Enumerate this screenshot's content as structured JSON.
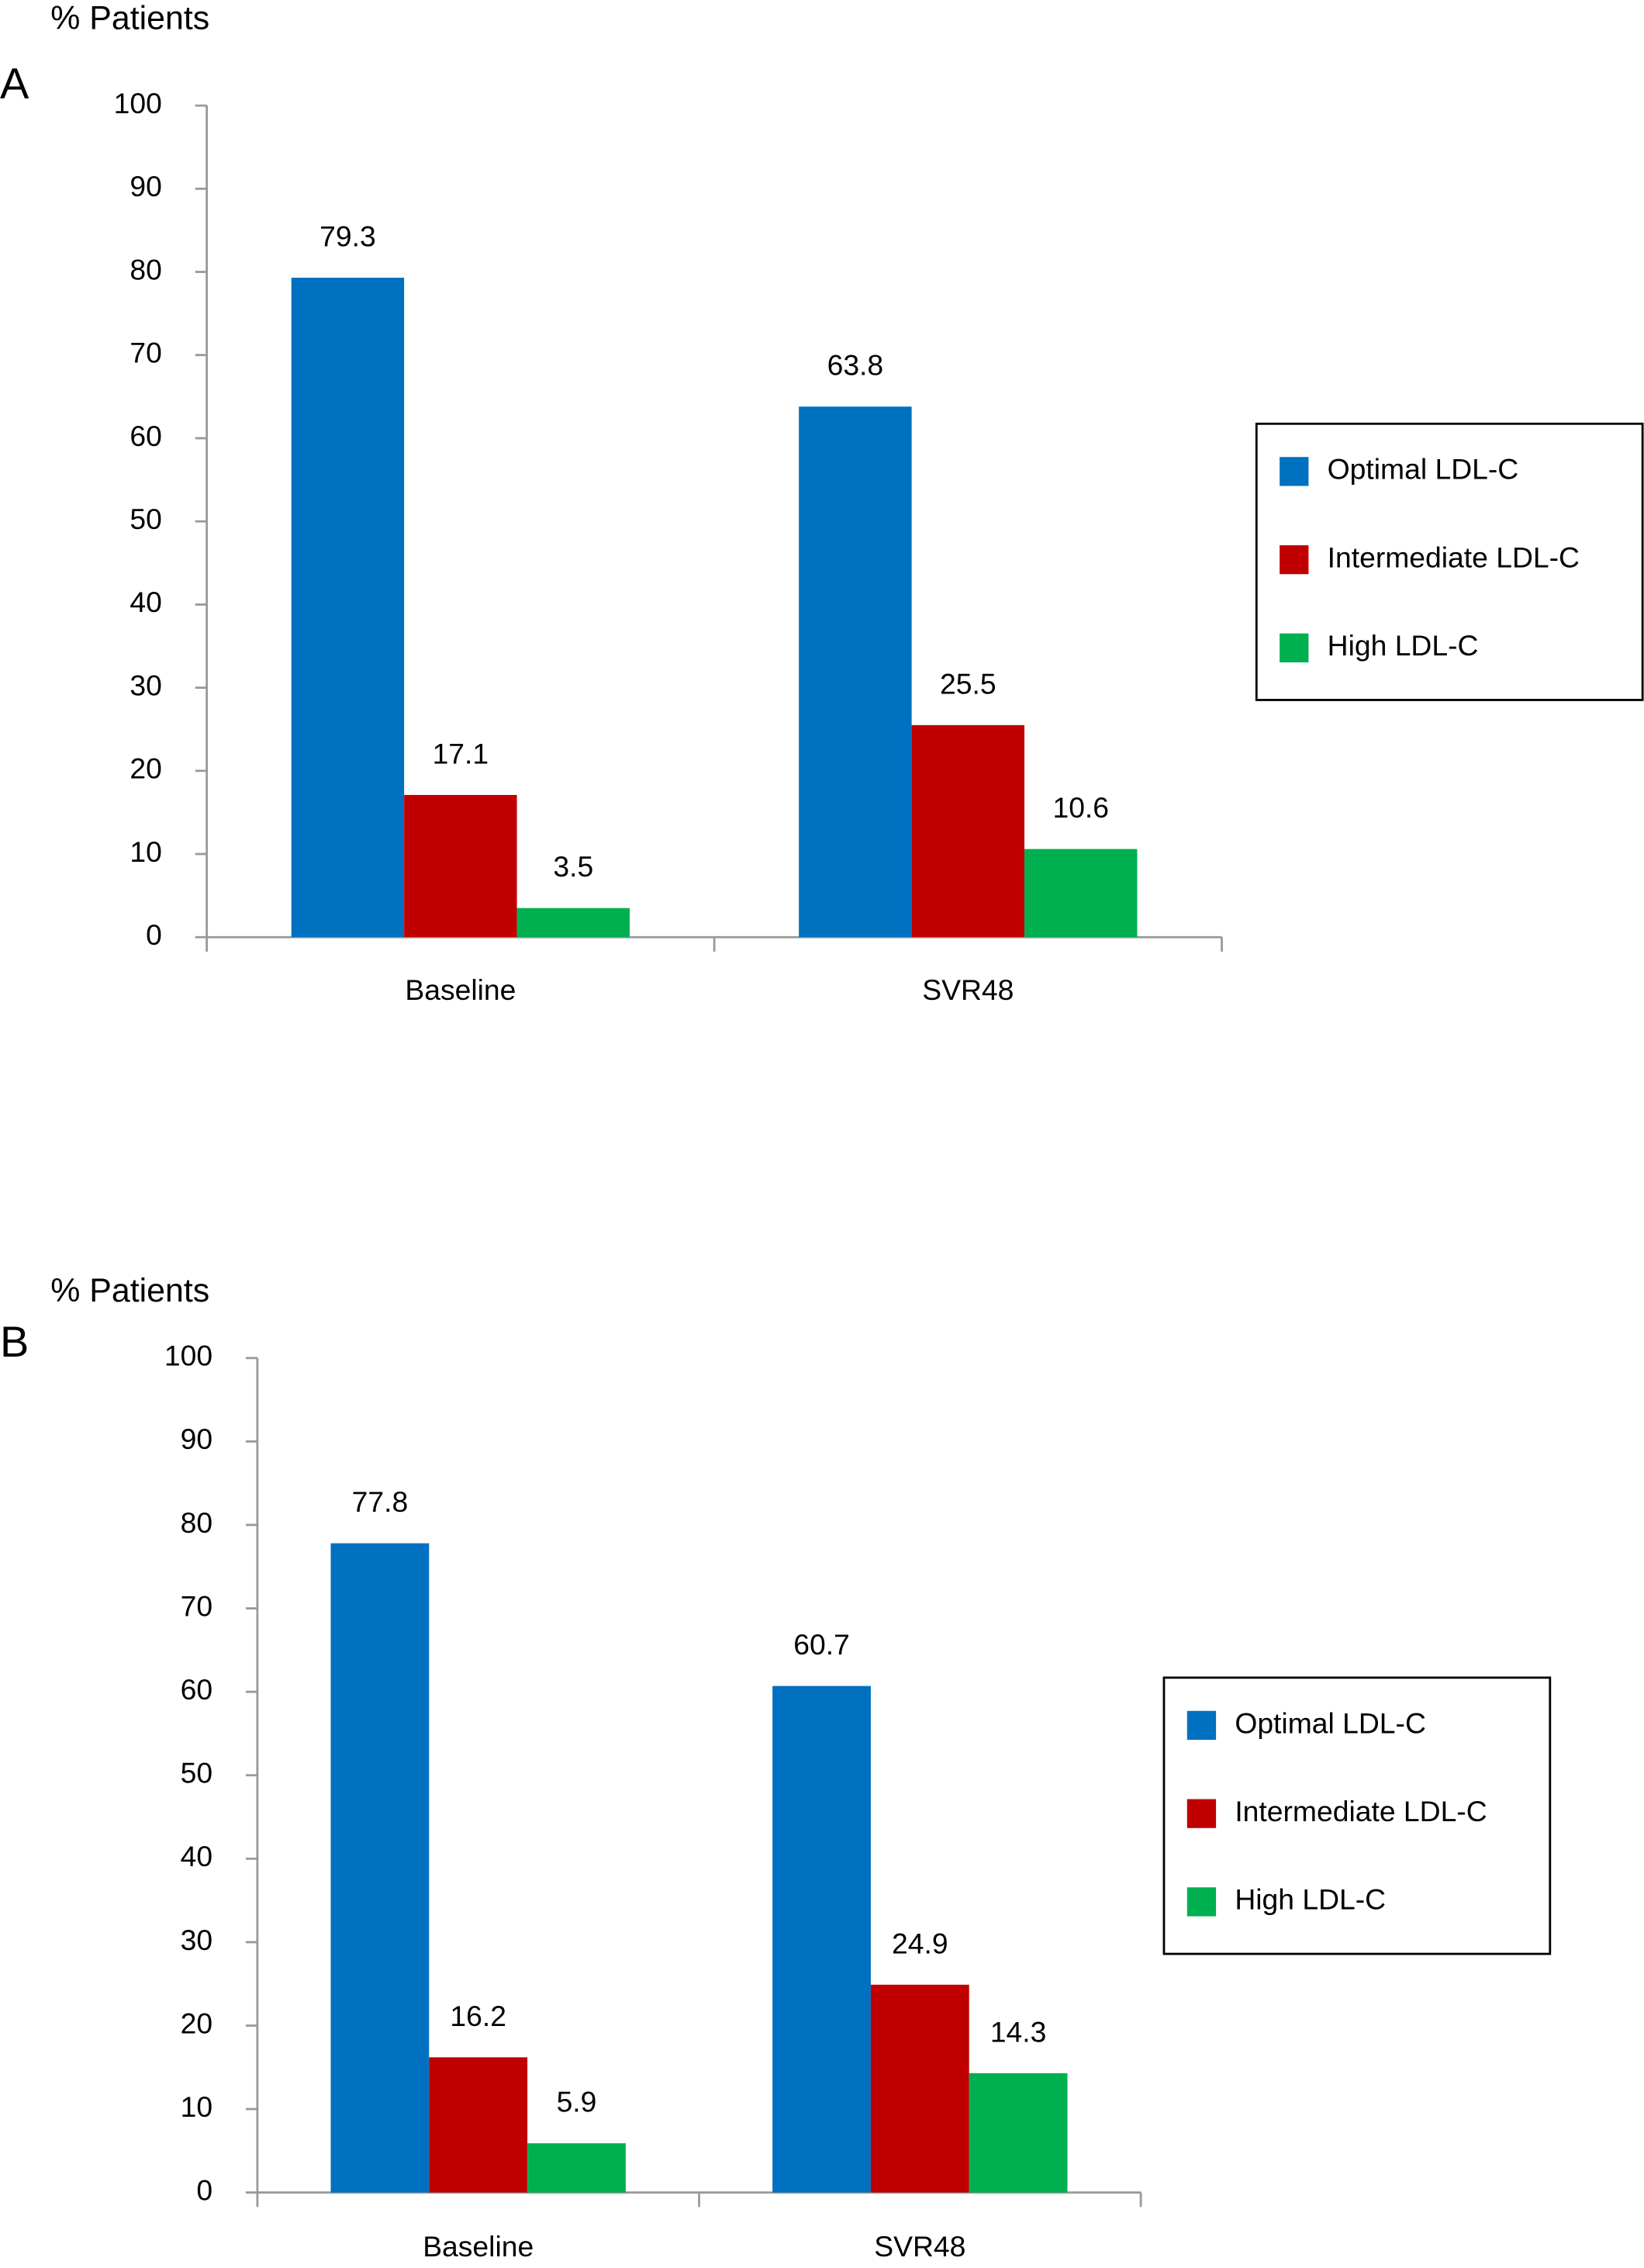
{
  "chart_data": [
    {
      "type": "bar",
      "panel": "A",
      "y_label": "% Patients",
      "categories": [
        "Baseline",
        "SVR48"
      ],
      "series": [
        {
          "name": "Optimal LDL-C",
          "color": "#0070c0",
          "values": [
            79.3,
            63.8
          ]
        },
        {
          "name": "Intermediate LDL-C",
          "color": "#c00000",
          "values": [
            17.1,
            25.5
          ]
        },
        {
          "name": "High LDL-C",
          "color": "#00b050",
          "values": [
            3.5,
            10.6
          ]
        }
      ],
      "ylim": [
        0,
        100
      ],
      "yticks": [
        0,
        10,
        20,
        30,
        40,
        50,
        60,
        70,
        80,
        90,
        100
      ],
      "legend": "right"
    },
    {
      "type": "bar",
      "panel": "B",
      "y_label": "% Patients",
      "categories": [
        "Baseline",
        "SVR48"
      ],
      "series": [
        {
          "name": "Optimal LDL-C",
          "color": "#0070c0",
          "values": [
            77.8,
            60.7
          ]
        },
        {
          "name": "Intermediate LDL-C",
          "color": "#c00000",
          "values": [
            16.2,
            24.9
          ]
        },
        {
          "name": "High LDL-C",
          "color": "#00b050",
          "values": [
            5.9,
            14.3
          ]
        }
      ],
      "ylim": [
        0,
        100
      ],
      "yticks": [
        0,
        10,
        20,
        30,
        40,
        50,
        60,
        70,
        80,
        90,
        100
      ],
      "legend": "right"
    }
  ]
}
